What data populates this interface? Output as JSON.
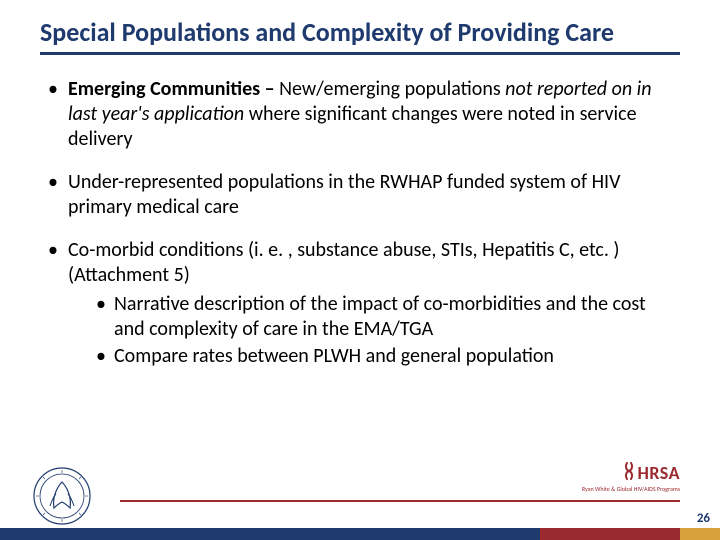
{
  "title": "Special Populations and Complexity of Providing Care",
  "colors": {
    "title": "#1f3a6e",
    "rule": "#1f3a6e",
    "text": "#000000",
    "footer_rule": "#9a2a2e",
    "bar_seg1": "#1f3a6e",
    "bar_seg2": "#9a2a2e",
    "bar_seg3": "#d9a13b",
    "background": "#ffffff"
  },
  "bullets": [
    {
      "runs": [
        {
          "text": "Emerging Communities – ",
          "bold": true
        },
        {
          "text": "New/emerging populations "
        },
        {
          "text": "not reported on in last year's application",
          "italic": true
        },
        {
          "text": " where significant changes were noted in service delivery"
        }
      ]
    },
    {
      "runs": [
        {
          "text": "Under-represented populations in the RWHAP funded system of HIV primary medical care"
        }
      ]
    },
    {
      "runs": [
        {
          "text": "Co-morbid conditions (i. e. , substance abuse, STIs, Hepatitis C, etc. ) (Attachment 5)"
        }
      ],
      "sub": [
        {
          "runs": [
            {
              "text": "Narrative description of the impact of co-morbidities and the cost and complexity of care in the EMA/TGA"
            }
          ]
        },
        {
          "runs": [
            {
              "text": "Compare rates between PLWH and  general population"
            }
          ]
        }
      ]
    }
  ],
  "footer": {
    "page_number": "26",
    "left_logo_alt": "HHS seal",
    "right_logo_text": "HRSA",
    "right_logo_sub": "Ryan White & Global HIV/AIDS Programs",
    "ribbon_glyph": "&"
  }
}
